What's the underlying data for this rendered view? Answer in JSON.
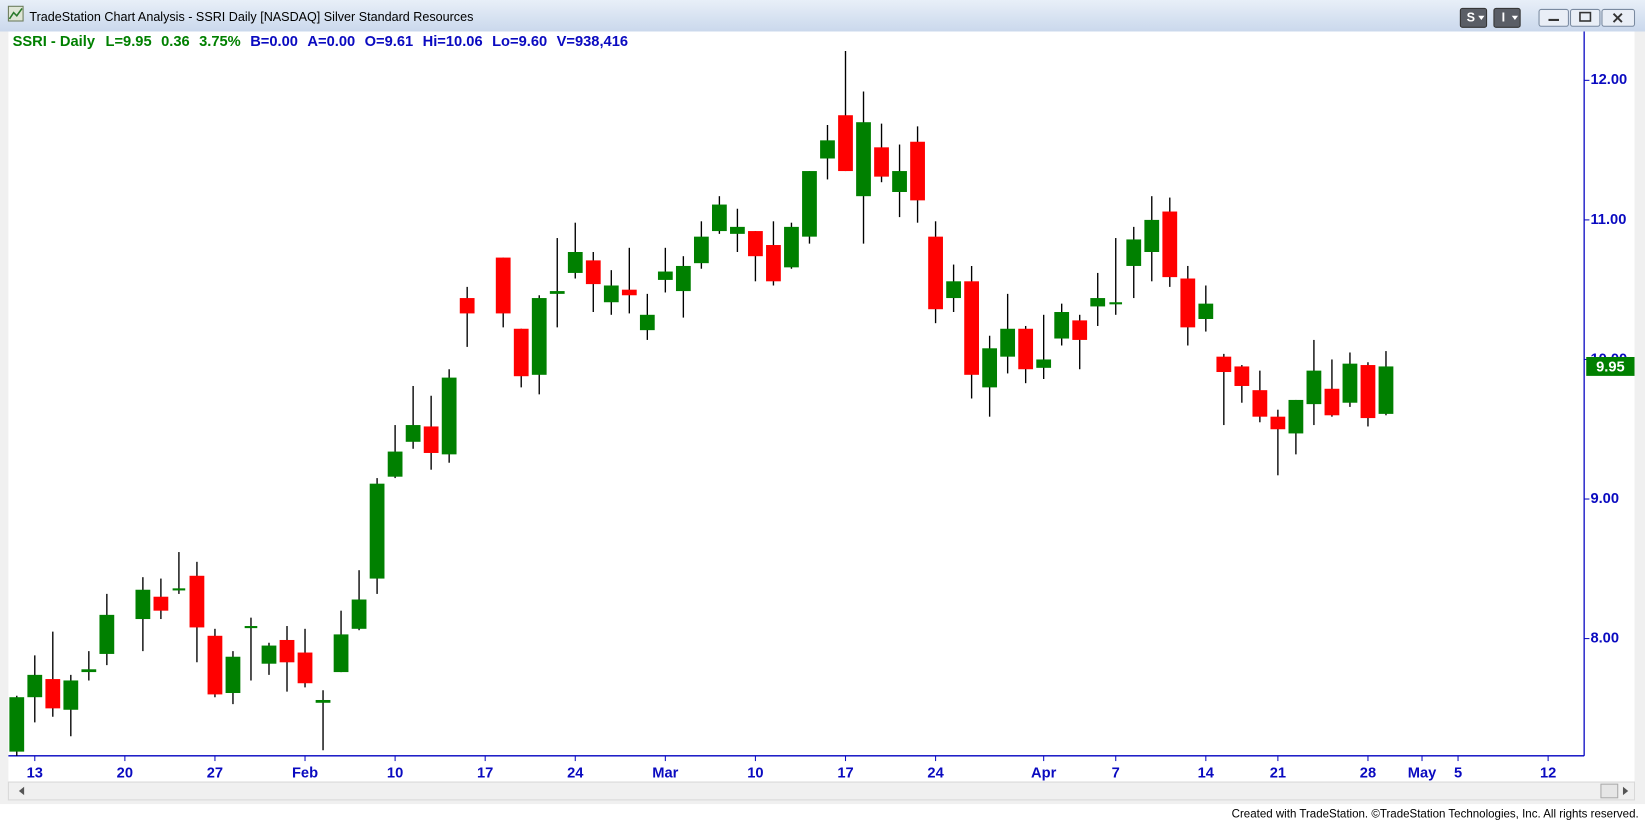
{
  "window": {
    "title": "TradeStation Chart Analysis - SSRI Daily [NASDAQ] Silver Standard Resources",
    "buttons": [
      "S",
      "I"
    ]
  },
  "chart_data": {
    "type": "candlestick",
    "header": [
      "SSRI - Daily",
      "L=9.95",
      "0.36",
      "3.75%",
      "B=0.00",
      "A=0.00",
      "O=9.61",
      "Hi=10.06",
      "Lo=9.60",
      "V=938,416"
    ],
    "categories": [
      null,
      "13",
      null,
      null,
      null,
      null,
      "20",
      null,
      null,
      null,
      null,
      "27",
      null,
      null,
      null,
      null,
      "Feb",
      null,
      null,
      null,
      null,
      "10",
      null,
      null,
      null,
      null,
      "17",
      null,
      null,
      null,
      null,
      "24",
      null,
      null,
      null,
      null,
      "Mar",
      null,
      null,
      null,
      null,
      "10",
      null,
      null,
      null,
      null,
      "17",
      null,
      null,
      null,
      null,
      "24",
      null,
      null,
      null,
      null,
      null,
      "Apr",
      null,
      null,
      null,
      "7",
      null,
      null,
      null,
      null,
      "14",
      null,
      null,
      null,
      "21",
      null,
      null,
      null,
      null,
      "28",
      null,
      null,
      "May",
      null,
      "5",
      null,
      null,
      null,
      null,
      "12",
      null
    ],
    "open": [
      7.19,
      7.58,
      7.71,
      7.49,
      7.76,
      7.89,
      null,
      8.14,
      8.3,
      8.35,
      8.45,
      8.02,
      7.61,
      8.08,
      7.82,
      7.99,
      7.9,
      7.54,
      7.76,
      8.07,
      8.43,
      9.16,
      9.41,
      9.52,
      9.32,
      10.44,
      null,
      10.73,
      10.22,
      9.89,
      10.47,
      10.62,
      10.71,
      10.41,
      10.5,
      10.21,
      10.57,
      10.49,
      10.69,
      10.92,
      10.9,
      10.92,
      10.82,
      10.66,
      10.88,
      11.44,
      11.75,
      11.17,
      11.52,
      11.2,
      11.56,
      10.88,
      10.44,
      10.56,
      9.8,
      10.02,
      10.22,
      9.94,
      10.15,
      10.28,
      10.38,
      10.4,
      10.67,
      10.77,
      11.06,
      10.58,
      10.29,
      10.02,
      9.95,
      9.78,
      9.59,
      9.47,
      9.68,
      9.79,
      9.69,
      9.96,
      9.61,
      null,
      null,
      null,
      null,
      null,
      null,
      null,
      null,
      null,
      null
    ],
    "high": [
      7.59,
      7.88,
      8.05,
      7.74,
      7.91,
      8.32,
      null,
      8.44,
      8.43,
      8.62,
      8.55,
      8.07,
      7.91,
      8.15,
      7.97,
      8.09,
      8.07,
      7.63,
      8.2,
      8.49,
      9.15,
      9.53,
      9.81,
      9.74,
      9.93,
      10.52,
      null,
      10.73,
      10.22,
      10.46,
      10.87,
      10.98,
      10.77,
      10.64,
      10.8,
      10.47,
      10.8,
      10.74,
      10.99,
      11.17,
      11.08,
      10.92,
      10.99,
      10.98,
      11.35,
      11.68,
      12.21,
      11.92,
      11.69,
      11.54,
      11.67,
      10.99,
      10.68,
      10.67,
      10.17,
      10.47,
      10.24,
      10.32,
      10.4,
      10.32,
      10.62,
      10.87,
      10.95,
      11.17,
      11.16,
      10.67,
      10.53,
      10.04,
      9.96,
      9.92,
      9.64,
      9.71,
      10.14,
      10.0,
      10.05,
      9.98,
      10.06,
      null,
      null,
      null,
      null,
      null,
      null,
      null,
      null,
      null,
      null
    ],
    "low": [
      7.16,
      7.4,
      7.44,
      7.3,
      7.7,
      7.81,
      null,
      7.91,
      8.14,
      8.32,
      7.83,
      7.58,
      7.53,
      7.7,
      7.74,
      7.62,
      7.65,
      7.2,
      7.76,
      8.06,
      8.32,
      9.15,
      9.36,
      9.21,
      9.26,
      10.09,
      null,
      10.23,
      9.8,
      9.75,
      10.23,
      10.58,
      10.34,
      10.32,
      10.33,
      10.14,
      10.48,
      10.3,
      10.65,
      10.9,
      10.77,
      10.56,
      10.53,
      10.65,
      10.83,
      11.29,
      11.35,
      10.83,
      11.27,
      11.02,
      10.98,
      10.26,
      10.34,
      9.72,
      9.59,
      9.9,
      9.83,
      9.86,
      10.1,
      9.93,
      10.24,
      10.32,
      10.44,
      10.56,
      10.52,
      10.1,
      10.2,
      9.53,
      9.69,
      9.55,
      9.17,
      9.32,
      9.53,
      9.59,
      9.66,
      9.52,
      9.6,
      null,
      null,
      null,
      null,
      null,
      null,
      null,
      null,
      null,
      null
    ],
    "close": [
      7.58,
      7.74,
      7.5,
      7.7,
      7.78,
      8.17,
      null,
      8.35,
      8.2,
      8.36,
      8.08,
      7.6,
      7.87,
      8.09,
      7.95,
      7.83,
      7.68,
      7.56,
      8.03,
      8.28,
      9.11,
      9.34,
      9.53,
      9.33,
      9.87,
      10.33,
      null,
      10.33,
      9.88,
      10.44,
      10.49,
      10.77,
      10.54,
      10.53,
      10.46,
      10.32,
      10.63,
      10.67,
      10.88,
      11.11,
      10.95,
      10.74,
      10.56,
      10.95,
      11.35,
      11.57,
      11.35,
      11.7,
      11.31,
      11.35,
      11.14,
      10.36,
      10.56,
      9.89,
      10.08,
      10.22,
      9.93,
      10.0,
      10.34,
      10.14,
      10.44,
      10.41,
      10.86,
      11.0,
      10.59,
      10.23,
      10.4,
      9.91,
      9.81,
      9.59,
      9.5,
      9.71,
      9.92,
      9.6,
      9.97,
      9.58,
      9.95,
      null,
      null,
      null,
      null,
      null,
      null,
      null,
      null,
      null,
      null
    ],
    "up_color": "#008000",
    "down_color": "#ff0000",
    "ylim": [
      7.16,
      12.35
    ],
    "yticks": [
      {
        "value": 8,
        "label": "8.00"
      },
      {
        "value": 9,
        "label": "9.00"
      },
      {
        "value": 10,
        "label": "10.00"
      },
      {
        "value": 11,
        "label": "11.00"
      },
      {
        "value": 12,
        "label": "12.00"
      }
    ]
  },
  "footer": "Created with TradeStation. ©TradeStation Technologies, Inc. All rights reserved."
}
